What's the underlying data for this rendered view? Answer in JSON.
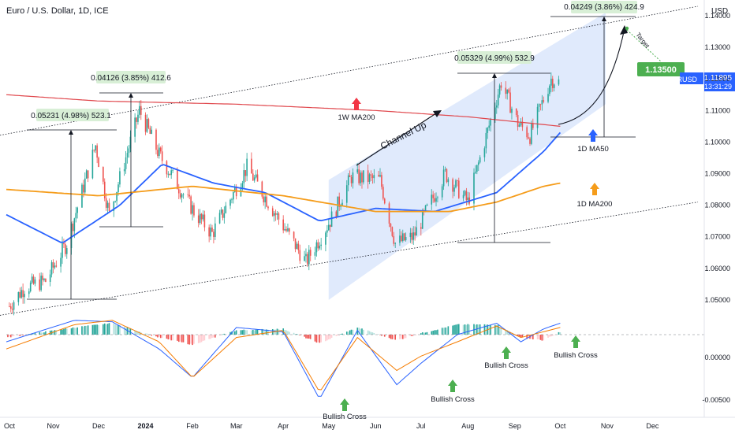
{
  "header": {
    "title": "Euro / U.S. Dollar, 1D, ICE",
    "currency": "USD"
  },
  "price_axis": {
    "ticks": [
      "1.14000",
      "1.13000",
      "1.12000",
      "1.11000",
      "1.10000",
      "1.09000",
      "1.08000",
      "1.07000",
      "1.06000",
      "1.05000"
    ],
    "ticker": "EURUSD",
    "last_price": "1.11895",
    "countdown": "13:31:29",
    "target_price": "1.13500"
  },
  "macd_axis": {
    "ticks": [
      "0.00000",
      "-0.00500"
    ]
  },
  "time_axis": {
    "labels": [
      "Oct",
      "Nov",
      "Dec",
      "2024",
      "Feb",
      "Mar",
      "Apr",
      "May",
      "Jun",
      "Jul",
      "Aug",
      "Sep",
      "Oct",
      "Nov",
      "Dec"
    ]
  },
  "measurements": [
    {
      "text": "0.05231 (4.98%) 523.1"
    },
    {
      "text": "0.04126 (3.85%) 412.6"
    },
    {
      "text": "0.05329 (4.99%) 532.9"
    },
    {
      "text": "0.04249 (3.86%) 424.9"
    }
  ],
  "annotations": {
    "channel_up": "Channel Up",
    "ma200_1w": "1W MA200",
    "ma50_1d": "1D MA50",
    "ma200_1d": "1D MA200",
    "target": "Target",
    "bullish_cross": "Bullish Cross"
  },
  "colors": {
    "bull": "#26a69a",
    "bear": "#ef5350",
    "ma50": "#2962ff",
    "ma200": "#f59c1a",
    "w_ma200": "#e0474c",
    "channel": "#dbe6fb",
    "label_bg": "#d8efd6",
    "target_bg": "#4caf50",
    "arrow_green": "#4caf50",
    "arrow_red": "#f23645",
    "arrow_blue": "#2962ff",
    "arrow_orange": "#f59c1a",
    "macd_line": "#2962ff",
    "signal_line": "#f57c00"
  },
  "chart_data": {
    "type": "line",
    "title": "Euro / U.S. Dollar, 1D, ICE",
    "xlabel": "",
    "ylabel": "USD",
    "x_range": [
      "2023-10-01",
      "2024-12-31"
    ],
    "ylim": [
      1.043,
      1.143
    ],
    "grid": false,
    "close_path": {
      "x": [
        "2023-10-03",
        "2023-10-13",
        "2023-10-27",
        "2023-11-10",
        "2023-11-29",
        "2023-12-08",
        "2023-12-28",
        "2024-01-10",
        "2024-02-02",
        "2024-02-14",
        "2024-03-08",
        "2024-03-22",
        "2024-04-16",
        "2024-05-03",
        "2024-05-16",
        "2024-06-04",
        "2024-06-14",
        "2024-06-26",
        "2024-07-17",
        "2024-08-01",
        "2024-08-23",
        "2024-09-03",
        "2024-09-11",
        "2024-09-25",
        "2024-09-30"
      ],
      "values": [
        1.048,
        1.054,
        1.056,
        1.068,
        1.099,
        1.077,
        1.11,
        1.096,
        1.078,
        1.071,
        1.092,
        1.081,
        1.062,
        1.076,
        1.089,
        1.088,
        1.068,
        1.07,
        1.09,
        1.081,
        1.119,
        1.106,
        1.102,
        1.12,
        1.119
      ]
    },
    "series": [
      {
        "name": "1D MA50",
        "x": [
          "2023-10-01",
          "2023-11-07",
          "2023-12-15",
          "2024-01-12",
          "2024-02-15",
          "2024-03-20",
          "2024-04-25",
          "2024-06-01",
          "2024-07-10",
          "2024-08-20",
          "2024-09-20",
          "2024-10-01"
        ],
        "values": [
          1.077,
          1.068,
          1.08,
          1.093,
          1.087,
          1.084,
          1.075,
          1.079,
          1.078,
          1.084,
          1.097,
          1.103
        ]
      },
      {
        "name": "1D MA200",
        "x": [
          "2023-10-01",
          "2023-12-01",
          "2024-02-01",
          "2024-04-01",
          "2024-06-01",
          "2024-07-20",
          "2024-08-20",
          "2024-09-20",
          "2024-10-01"
        ],
        "values": [
          1.085,
          1.083,
          1.086,
          1.083,
          1.078,
          1.078,
          1.081,
          1.086,
          1.087
        ]
      },
      {
        "name": "1W MA200",
        "x": [
          "2023-10-01",
          "2023-12-01",
          "2024-03-01",
          "2024-06-01",
          "2024-08-01",
          "2024-10-01"
        ],
        "values": [
          1.115,
          1.113,
          1.112,
          1.11,
          1.108,
          1.105
        ]
      }
    ],
    "channel": {
      "upper": {
        "x": [
          "2024-05-01",
          "2024-10-31"
        ],
        "values": [
          1.088,
          1.141
        ]
      },
      "lower": {
        "x": [
          "2024-05-01",
          "2024-10-31"
        ],
        "values": [
          1.05,
          1.112
        ]
      }
    },
    "trendlines": [
      {
        "x": [
          "2023-09-25",
          "2024-12-31"
        ],
        "values": [
          1.102,
          1.143
        ]
      },
      {
        "x": [
          "2023-09-25",
          "2024-12-31"
        ],
        "values": [
          1.045,
          1.081
        ]
      }
    ],
    "target": {
      "x": "2024-10-15",
      "value": 1.135
    },
    "macd": {
      "ylim": [
        -0.0055,
        0.0011
      ],
      "x": [
        "2023-10-01",
        "2023-11-15",
        "2023-12-10",
        "2024-01-10",
        "2024-02-01",
        "2024-03-01",
        "2024-04-01",
        "2024-04-25",
        "2024-05-20",
        "2024-06-15",
        "2024-07-01",
        "2024-07-25",
        "2024-08-20",
        "2024-09-05",
        "2024-09-20",
        "2024-10-01"
      ],
      "histogram": [
        -0.0002,
        0.0005,
        0.0008,
        -0.0002,
        -0.0007,
        0.0003,
        0.0004,
        -0.0006,
        0.0005,
        -0.0004,
        0.0001,
        0.0007,
        0.0007,
        -0.0002,
        -0.0004,
        0.0002
      ],
      "macd_line": [
        -0.0005,
        0.001,
        0.0009,
        -0.001,
        -0.003,
        0.0005,
        0.0002,
        -0.0045,
        0.0003,
        -0.0035,
        -0.002,
        0.0,
        0.0008,
        -0.0005,
        0.0004,
        0.0008
      ],
      "signal_line": [
        -0.001,
        0.0007,
        0.001,
        -0.0005,
        -0.003,
        -0.0002,
        0.0003,
        -0.004,
        -0.0002,
        -0.0025,
        -0.0015,
        -0.0005,
        0.0006,
        -0.0002,
        0.0002,
        0.0005
      ]
    }
  }
}
